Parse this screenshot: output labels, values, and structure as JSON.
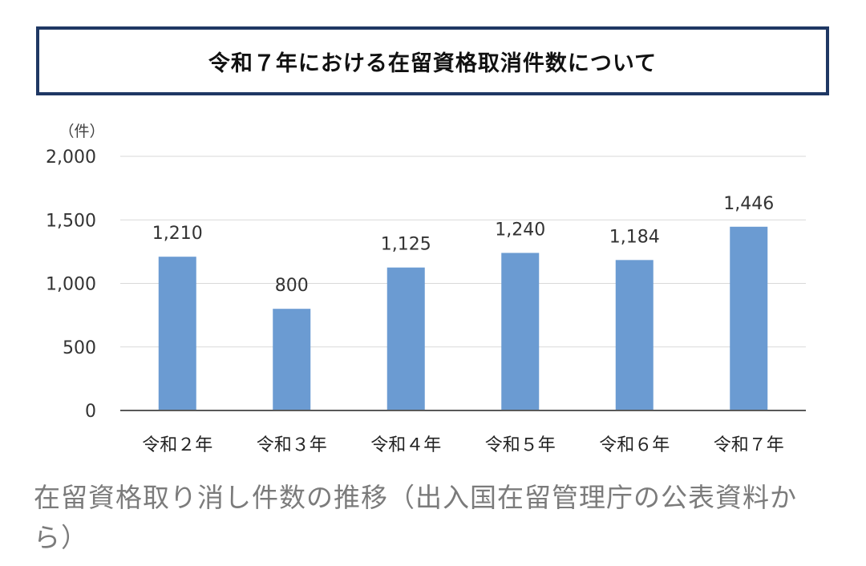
{
  "title": "令和７年における在留資格取消件数について",
  "caption": "在留資格取り消し件数の推移（出入国在留管理庁の公表資料から）",
  "chart_data": {
    "type": "bar",
    "title": "令和７年における在留資格取消件数について",
    "unit_label": "（件）",
    "categories": [
      "令和２年",
      "令和３年",
      "令和４年",
      "令和５年",
      "令和６年",
      "令和７年"
    ],
    "values": [
      1210,
      800,
      1125,
      1240,
      1184,
      1446
    ],
    "value_labels": [
      "1,210",
      "800",
      "1,125",
      "1,240",
      "1,184",
      "1,446"
    ],
    "ylim": [
      0,
      2000
    ],
    "yticks": [
      0,
      500,
      1000,
      1500,
      2000
    ],
    "ytick_labels": [
      "0",
      "500",
      "1,000",
      "1,500",
      "2,000"
    ],
    "grid": true,
    "colors": {
      "bar": "#6b9bd2",
      "grid": "#d9d9d9",
      "axis": "#595959",
      "border": "#1f3864"
    }
  }
}
